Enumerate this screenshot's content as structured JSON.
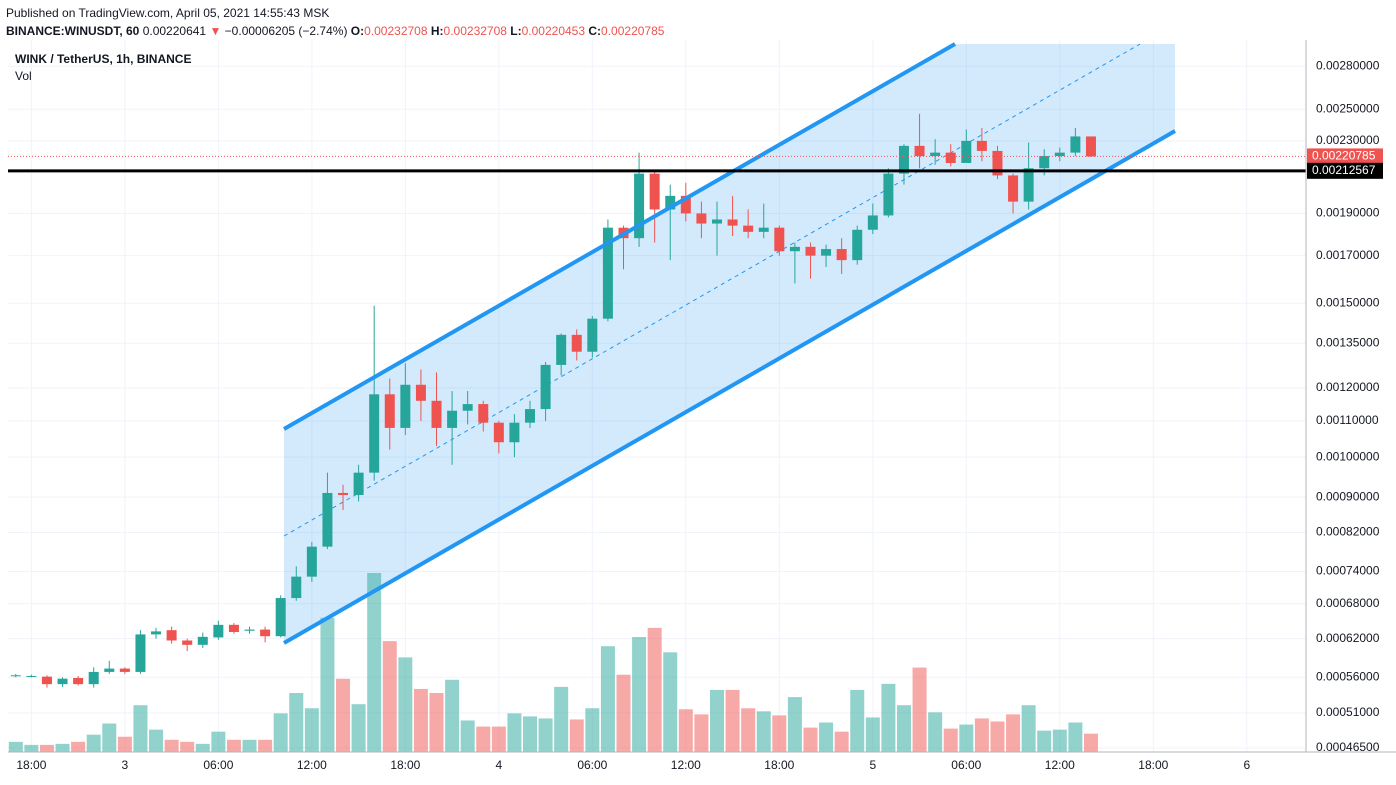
{
  "header": {
    "published": "Published on TradingView.com, April 05, 2021 14:55:43 MSK",
    "symbol": "BINANCE:WINUSDT, 60",
    "last": "0.00220641",
    "arrow": "▼",
    "change": "−0.00006205 (−2.74%)",
    "ohlc": [
      {
        "key": "O:",
        "value": "0.00232708"
      },
      {
        "key": "H:",
        "value": "0.00232708"
      },
      {
        "key": "L:",
        "value": "0.00220453"
      },
      {
        "key": "C:",
        "value": "0.00220785"
      }
    ]
  },
  "chart_data": {
    "type": "candlestick",
    "title": "WINK / TetherUS, 1h, BINANCE",
    "volume_label": "Vol",
    "log_scale": true,
    "grid": true,
    "up_color": "#26a69a",
    "down_color": "#ef5350",
    "open": [
      0.000563,
      0.000562,
      0.000561,
      0.00055,
      0.000559,
      0.00055,
      0.000568,
      0.000573,
      0.000568,
      0.000627,
      0.000634,
      0.000617,
      0.00061,
      0.000622,
      0.000643,
      0.000633,
      0.000635,
      0.000624,
      0.00069,
      0.00073,
      0.00079,
      0.00091,
      0.000905,
      0.00096,
      0.00118,
      0.00108,
      0.00121,
      0.00116,
      0.00108,
      0.00113,
      0.00115,
      0.001095,
      0.00104,
      0.001095,
      0.001135,
      0.001275,
      0.00138,
      0.00132,
      0.00144,
      0.00183,
      0.00178,
      0.00211,
      0.00192,
      0.00199,
      0.0019,
      0.00185,
      0.00187,
      0.00184,
      0.00181,
      0.00183,
      0.00172,
      0.00174,
      0.0017,
      0.00173,
      0.00168,
      0.00182,
      0.00189,
      0.00211,
      0.00227,
      0.00221,
      0.00223,
      0.00217,
      0.0023,
      0.00224,
      0.0021,
      0.00196,
      0.00214,
      0.00221,
      0.00223,
      0.00232708
    ],
    "high": [
      0.000565,
      0.000564,
      0.000563,
      0.00056,
      0.000562,
      0.000575,
      0.000585,
      0.000575,
      0.000634,
      0.000638,
      0.00064,
      0.00062,
      0.00063,
      0.00065,
      0.000646,
      0.00064,
      0.00064,
      0.000695,
      0.00075,
      0.0008,
      0.00096,
      0.00093,
      0.00098,
      0.00149,
      0.00123,
      0.00128,
      0.00126,
      0.00125,
      0.00119,
      0.00119,
      0.00116,
      0.0011,
      0.00112,
      0.00116,
      0.001285,
      0.001385,
      0.0014,
      0.00145,
      0.00187,
      0.00184,
      0.00223,
      0.00213,
      0.00205,
      0.00206,
      0.00196,
      0.00196,
      0.00199,
      0.00192,
      0.00195,
      0.00184,
      0.00176,
      0.00176,
      0.00175,
      0.00178,
      0.00184,
      0.00195,
      0.00214,
      0.00228,
      0.00247,
      0.00231,
      0.00228,
      0.00237,
      0.00238,
      0.00227,
      0.00211,
      0.00229,
      0.00225,
      0.00226,
      0.00238,
      0.00232708
    ],
    "low": [
      0.00056,
      0.00056,
      0.000545,
      0.000546,
      0.000548,
      0.000545,
      0.000565,
      0.000565,
      0.000565,
      0.00062,
      0.000612,
      0.0006,
      0.000605,
      0.000618,
      0.000628,
      0.000628,
      0.000614,
      0.000622,
      0.000685,
      0.00072,
      0.000785,
      0.00087,
      0.00089,
      0.00094,
      0.00102,
      0.00106,
      0.0011,
      0.00103,
      0.00098,
      0.00109,
      0.00107,
      0.00101,
      0.001,
      0.00108,
      0.0011,
      0.00124,
      0.00129,
      0.0013,
      0.00143,
      0.00164,
      0.00174,
      0.00176,
      0.00168,
      0.00186,
      0.00178,
      0.0017,
      0.00179,
      0.00178,
      0.00178,
      0.0017,
      0.00158,
      0.0016,
      0.00165,
      0.00162,
      0.00166,
      0.0018,
      0.00188,
      0.00205,
      0.00214,
      0.00216,
      0.00215,
      0.00217,
      0.00218,
      0.00208,
      0.0019,
      0.00192,
      0.0021,
      0.00218,
      0.00221,
      0.00220453
    ],
    "close": [
      0.000563,
      0.000562,
      0.00055,
      0.000558,
      0.00055,
      0.000568,
      0.000573,
      0.000568,
      0.000627,
      0.000632,
      0.000617,
      0.00061,
      0.000623,
      0.000643,
      0.000631,
      0.000635,
      0.000624,
      0.00069,
      0.00073,
      0.00079,
      0.00091,
      0.000905,
      0.00096,
      0.00118,
      0.00108,
      0.00121,
      0.00116,
      0.00108,
      0.00113,
      0.00115,
      0.001095,
      0.00104,
      0.001095,
      0.001135,
      0.001275,
      0.00138,
      0.00132,
      0.00144,
      0.00183,
      0.00178,
      0.00211,
      0.00192,
      0.00199,
      0.0019,
      0.00185,
      0.00187,
      0.00184,
      0.00181,
      0.00183,
      0.00172,
      0.00174,
      0.0017,
      0.00173,
      0.00168,
      0.00182,
      0.00189,
      0.00211,
      0.00227,
      0.00221,
      0.00223,
      0.00217,
      0.0023,
      0.00224,
      0.0021,
      0.00196,
      0.00214,
      0.00221,
      0.00223,
      0.002327,
      0.00220785
    ],
    "volume": [
      10,
      7,
      7,
      8,
      10,
      17,
      28,
      15,
      46,
      22,
      12,
      10,
      8,
      20,
      12,
      12,
      12,
      38,
      58,
      43,
      132,
      72,
      47,
      176,
      109,
      93,
      62,
      58,
      71,
      31,
      25,
      25,
      38,
      35,
      33,
      64,
      32,
      43,
      104,
      76,
      113,
      122,
      98,
      42,
      37,
      61,
      61,
      43,
      40,
      36,
      54,
      24,
      29,
      20,
      61,
      34,
      67,
      46,
      83,
      39,
      23,
      27,
      33,
      30,
      37,
      46,
      21,
      22,
      29,
      18
    ],
    "xlim": [
      -0.5,
      82.8
    ],
    "xticks": [
      {
        "value": 1,
        "label": "18:00"
      },
      {
        "value": 7,
        "label": "3"
      },
      {
        "value": 13,
        "label": "06:00"
      },
      {
        "value": 19,
        "label": "12:00"
      },
      {
        "value": 25,
        "label": "18:00"
      },
      {
        "value": 31,
        "label": "4"
      },
      {
        "value": 37,
        "label": "06:00"
      },
      {
        "value": 43,
        "label": "12:00"
      },
      {
        "value": 49,
        "label": "18:00"
      },
      {
        "value": 55,
        "label": "5"
      },
      {
        "value": 61,
        "label": "06:00"
      },
      {
        "value": 67,
        "label": "12:00"
      },
      {
        "value": 73,
        "label": "18:00"
      },
      {
        "value": 79,
        "label": "6"
      }
    ],
    "ylim": [
      0.00046,
      0.003
    ],
    "yticks": [
      {
        "value": 0.0028,
        "label": "0.00280000"
      },
      {
        "value": 0.0025,
        "label": "0.00250000"
      },
      {
        "value": 0.0023,
        "label": "0.00230000"
      },
      {
        "value": 0.0019,
        "label": "0.00190000"
      },
      {
        "value": 0.0017,
        "label": "0.00170000"
      },
      {
        "value": 0.0015,
        "label": "0.00150000"
      },
      {
        "value": 0.00135,
        "label": "0.00135000"
      },
      {
        "value": 0.0012,
        "label": "0.00120000"
      },
      {
        "value": 0.0011,
        "label": "0.00110000"
      },
      {
        "value": 0.001,
        "label": "0.00100000"
      },
      {
        "value": 0.0009,
        "label": "0.00090000"
      },
      {
        "value": 0.00082,
        "label": "0.00082000"
      },
      {
        "value": 0.00074,
        "label": "0.00074000"
      },
      {
        "value": 0.00068,
        "label": "0.00068000"
      },
      {
        "value": 0.00062,
        "label": "0.00062000"
      },
      {
        "value": 0.00056,
        "label": "0.00056000"
      },
      {
        "value": 0.00051,
        "label": "0.00051000"
      },
      {
        "value": 0.000465,
        "label": "0.00046500"
      }
    ],
    "y2lim": [
      0,
      700
    ],
    "hlines": [
      {
        "value": 0.00220785,
        "color": "#ef5350",
        "style": "dotted"
      },
      {
        "value": 0.00212567,
        "color": "#000000",
        "style": "solid"
      }
    ]
  }
}
